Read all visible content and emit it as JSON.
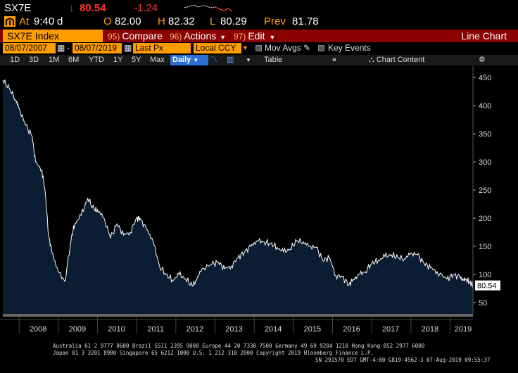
{
  "quote": {
    "ticker": "SX7E",
    "arrow": "↓",
    "last": "80.54",
    "change": "-1.24",
    "at_label": "At",
    "time": "9:40",
    "time_suffix": "d",
    "open_label": "O",
    "open": "82.00",
    "high_label": "H",
    "high": "82.32",
    "low_label": "L",
    "low": "80.29",
    "prev_label": "Prev",
    "prev": "81.78"
  },
  "titlebar": {
    "security": "SX7E Index",
    "compare_num": "95)",
    "compare": "Compare",
    "actions_num": "96)",
    "actions": "Actions",
    "edit_num": "97)",
    "edit": "Edit",
    "chart_type": "Line Chart"
  },
  "fields": {
    "start_date": "08/07/2007",
    "dash": "-",
    "end_date": "08/07/2019",
    "price_field": "Last Px",
    "currency": "Local CCY",
    "mov_avgs": "Mov Avgs",
    "key_events": "Key Events"
  },
  "toolbar": {
    "ranges": [
      "1D",
      "3D",
      "1M",
      "6M",
      "YTD",
      "1Y",
      "5Y",
      "Max"
    ],
    "frequency": "Daily",
    "table": "Table",
    "chart_content": "Chart Content"
  },
  "colors": {
    "area_fill": "#0b1d33",
    "line": "#ffffff",
    "accent_orange": "#ff9c00",
    "title_red": "#8b0000",
    "down_red": "#ff3333"
  },
  "chart_data": {
    "type": "area",
    "x_label_years": [
      "2008",
      "2009",
      "2010",
      "2011",
      "2012",
      "2013",
      "2014",
      "2015",
      "2016",
      "2017",
      "2018",
      "2019"
    ],
    "y_ticks": [
      50,
      100,
      150,
      200,
      250,
      300,
      350,
      400,
      450
    ],
    "ylim": [
      30,
      460
    ],
    "last_value_label": "80.54",
    "series": [
      {
        "x": [
          "2007-08",
          "2007-10",
          "2007-12",
          "2008-01",
          "2008-03",
          "2008-05",
          "2008-06",
          "2008-08",
          "2008-09",
          "2008-10",
          "2008-11",
          "2009-01",
          "2009-03",
          "2009-05",
          "2009-06",
          "2009-08",
          "2009-10",
          "2009-12",
          "2010-01",
          "2010-03",
          "2010-05",
          "2010-07",
          "2010-09",
          "2010-11",
          "2011-01",
          "2011-02",
          "2011-04",
          "2011-06",
          "2011-08",
          "2011-10",
          "2011-12",
          "2012-02",
          "2012-04",
          "2012-06",
          "2012-07",
          "2012-09",
          "2012-12",
          "2013-02",
          "2013-04",
          "2013-06",
          "2013-08",
          "2013-10",
          "2013-12",
          "2014-02",
          "2014-04",
          "2014-06",
          "2014-08",
          "2014-10",
          "2014-12",
          "2015-02",
          "2015-04",
          "2015-06",
          "2015-08",
          "2015-10",
          "2015-12",
          "2016-02",
          "2016-04",
          "2016-06",
          "2016-07",
          "2016-09",
          "2016-11",
          "2017-01",
          "2017-03",
          "2017-05",
          "2017-07",
          "2017-09",
          "2017-11",
          "2018-01",
          "2018-03",
          "2018-05",
          "2018-07",
          "2018-09",
          "2018-12",
          "2019-02",
          "2019-04",
          "2019-05",
          "2019-06",
          "2019-07",
          "2019-08"
        ],
        "y": [
          445,
          430,
          410,
          395,
          365,
          345,
          300,
          285,
          245,
          170,
          140,
          105,
          88,
          165,
          190,
          205,
          235,
          215,
          215,
          200,
          165,
          190,
          170,
          175,
          200,
          200,
          180,
          160,
          115,
          100,
          90,
          100,
          92,
          80,
          88,
          110,
          118,
          122,
          110,
          115,
          130,
          140,
          150,
          160,
          158,
          155,
          148,
          140,
          145,
          160,
          158,
          150,
          148,
          125,
          130,
          98,
          96,
          82,
          88,
          100,
          105,
          120,
          125,
          132,
          135,
          130,
          128,
          138,
          135,
          120,
          112,
          105,
          92,
          100,
          95,
          90,
          92,
          86,
          80.54
        ]
      }
    ]
  },
  "footer": {
    "line1": "Australia 61 2 9777 8600 Brazil 5511 2395 9000 Europe 44 20 7330 7500 Germany 49 69 9204 1210 Hong Kong 852 2977 6000",
    "line2": "Japan 81 3 3201 8900        Singapore 65 6212 1000       U.S. 1 212 318 2000           Copyright 2019 Bloomberg Finance L.P.",
    "line3": "SN 291570 EDT  GMT-4:00 G819-4562-3 07-Aug-2019 09:55:37"
  }
}
